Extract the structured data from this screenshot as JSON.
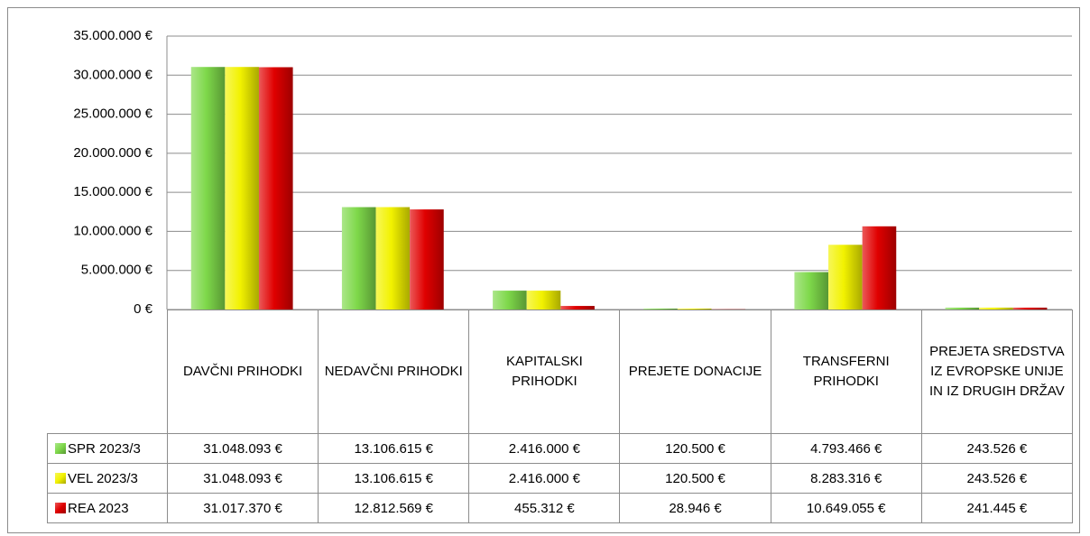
{
  "chart_data": {
    "type": "bar",
    "categories": [
      "DAVČNI PRIHODKI",
      "NEDAVČNI PRIHODKI",
      "KAPITALSKI PRIHODKI",
      "PREJETE DONACIJE",
      "TRANSFERNI PRIHODKI",
      "PREJETA SREDSTVA IZ EVROPSKE UNIJE IN IZ DRUGIH DRŽAV"
    ],
    "series": [
      {
        "name": "SPR 2023/3",
        "color": "#7ed84a",
        "values": [
          31048093,
          13106615,
          2416000,
          120500,
          4793466,
          243526
        ],
        "value_labels": [
          "31.048.093 €",
          "13.106.615 €",
          "2.416.000 €",
          "120.500 €",
          "4.793.466 €",
          "243.526 €"
        ]
      },
      {
        "name": "VEL 2023/3",
        "color": "#f2f200",
        "values": [
          31048093,
          13106615,
          2416000,
          120500,
          8283316,
          243526
        ],
        "value_labels": [
          "31.048.093 €",
          "13.106.615 €",
          "2.416.000 €",
          "120.500 €",
          "8.283.316 €",
          "243.526 €"
        ]
      },
      {
        "name": "REA 2023",
        "color": "#e00000",
        "values": [
          31017370,
          12812569,
          455312,
          28946,
          10649055,
          241445
        ],
        "value_labels": [
          "31.017.370 €",
          "12.812.569 €",
          "455.312 €",
          "28.946 €",
          "10.649.055 €",
          "241.445 €"
        ]
      }
    ],
    "ylim": [
      0,
      35000000
    ],
    "yticks": [
      {
        "value": 0,
        "label": "0 €"
      },
      {
        "value": 5000000,
        "label": "5.000.000 €"
      },
      {
        "value": 10000000,
        "label": "10.000.000 €"
      },
      {
        "value": 15000000,
        "label": "15.000.000 €"
      },
      {
        "value": 20000000,
        "label": "20.000.000 €"
      },
      {
        "value": 25000000,
        "label": "25.000.000 €"
      },
      {
        "value": 30000000,
        "label": "30.000.000 €"
      },
      {
        "value": 35000000,
        "label": "35.000.000 €"
      }
    ],
    "grid": true
  }
}
